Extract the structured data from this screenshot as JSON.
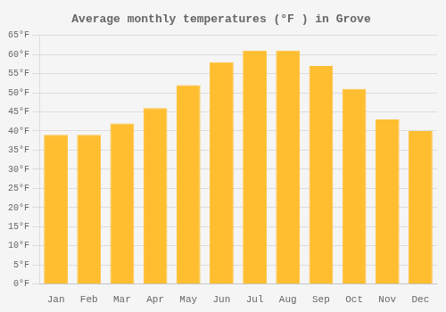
{
  "chart_data": {
    "type": "bar",
    "title": "Average monthly temperatures (°F ) in Grove",
    "categories": [
      "Jan",
      "Feb",
      "Mar",
      "Apr",
      "May",
      "Jun",
      "Jul",
      "Aug",
      "Sep",
      "Oct",
      "Nov",
      "Dec"
    ],
    "values": [
      39,
      39,
      42,
      46,
      52,
      58,
      61,
      61,
      57,
      51,
      43,
      40
    ],
    "color": "#FFBE30",
    "ylim": [
      0,
      65
    ],
    "yticks": [
      {
        "value": 0,
        "label": "0°F"
      },
      {
        "value": 5,
        "label": "5°F"
      },
      {
        "value": 10,
        "label": "10°F"
      },
      {
        "value": 15,
        "label": "15°F"
      },
      {
        "value": 20,
        "label": "20°F"
      },
      {
        "value": 25,
        "label": "25°F"
      },
      {
        "value": 30,
        "label": "30°F"
      },
      {
        "value": 35,
        "label": "35°F"
      },
      {
        "value": 40,
        "label": "40°F"
      },
      {
        "value": 45,
        "label": "45°F"
      },
      {
        "value": 50,
        "label": "50°F"
      },
      {
        "value": 55,
        "label": "55°F"
      },
      {
        "value": 60,
        "label": "60°F"
      },
      {
        "value": 65,
        "label": "65°F"
      }
    ],
    "grid": true
  }
}
